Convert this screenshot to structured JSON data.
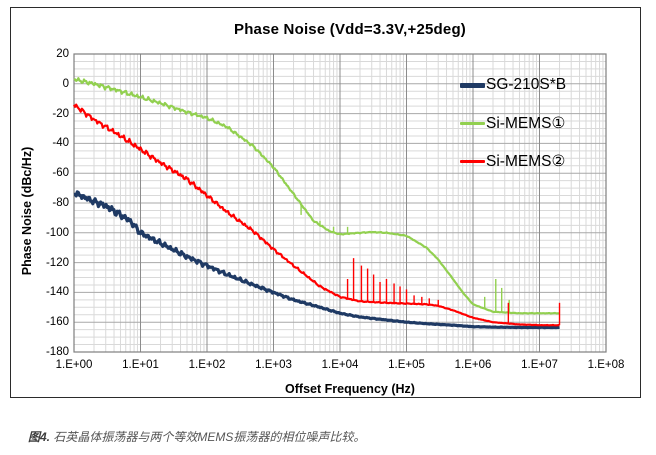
{
  "figure": {
    "title": "Phase Noise (Vdd=3.3V,+25deg)",
    "x_axis": {
      "label": "Offset Frequency (Hz)",
      "tick_labels": [
        "1.E+00",
        "1.E+01",
        "1.E+02",
        "1.E+03",
        "1.E+04",
        "1.E+05",
        "1.E+06",
        "1.E+07",
        "1.E+08"
      ]
    },
    "y_axis": {
      "label": "Phase Noise (dBc/Hz)",
      "tick_labels": [
        "20",
        "0",
        "-20",
        "-40",
        "-60",
        "-80",
        "-100",
        "-120",
        "-140",
        "-160",
        "-180"
      ]
    },
    "legend": [
      {
        "label": "SG-210S*B",
        "color": "#1f3a64",
        "swatch_thickness": 5
      },
      {
        "label": "Si-MEMS①",
        "color": "#92d050",
        "swatch_thickness": 3
      },
      {
        "label": "Si-MEMS②",
        "color": "#ff0000",
        "swatch_thickness": 3
      }
    ],
    "colors": {
      "grid_major": "#a8a8a8",
      "grid_minor": "#d9d9d9",
      "grid_decade": "#8c8c8c",
      "plot_border": "#7f7f7f"
    }
  },
  "caption": {
    "prefix": "图4.",
    "text": " 石英晶体振荡器与两个等效MEMS振荡器的相位噪声比较。"
  },
  "chart_data": {
    "type": "line",
    "title": "Phase Noise (Vdd=3.3V,+25deg)",
    "xlabel": "Offset Frequency (Hz)",
    "ylabel": "Phase Noise (dBc/Hz)",
    "x_scale": "log",
    "xlim": [
      1,
      100000000
    ],
    "ylim": [
      -180,
      20
    ],
    "y_major_step": 20,
    "y_minor_step": 5,
    "grid": true,
    "legend_position": "top-right-inside",
    "series": [
      {
        "name": "SG-210S*B",
        "color": "#1f3a64",
        "line_width": 3.2,
        "seed": 7,
        "x": [
          1,
          2,
          3,
          5,
          7,
          10,
          20,
          50,
          100,
          200,
          500,
          1000,
          2000,
          5000,
          10000,
          20000,
          50000,
          100000,
          200000,
          500000,
          1000000,
          2000000,
          5000000,
          10000000,
          20000000
        ],
        "y": [
          -73,
          -79,
          -82,
          -88,
          -92,
          -100,
          -107,
          -116,
          -122,
          -128,
          -135,
          -140,
          -145,
          -150,
          -154,
          -156.5,
          -158.5,
          -160,
          -161,
          -162,
          -163,
          -163.3,
          -163.5,
          -163.5,
          -163.5
        ],
        "noise_db": [
          2.5,
          2.6,
          3,
          3,
          2.6,
          2.4,
          2.2,
          2,
          1.8,
          1.5,
          1.2,
          1,
          0.8,
          0.6,
          0.5,
          0.4,
          0.3,
          0.25,
          0.2,
          0.2,
          0.15,
          0.15,
          0.15,
          0.15,
          0.15
        ],
        "spurs": []
      },
      {
        "name": "Si-MEMS①",
        "color": "#92d050",
        "line_width": 2.2,
        "seed": 31,
        "x": [
          1,
          2,
          5,
          10,
          20,
          50,
          100,
          200,
          500,
          1000,
          2000,
          4000,
          7000,
          10000,
          20000,
          30000,
          50000,
          100000,
          200000,
          300000,
          500000,
          700000,
          1000000,
          2000000,
          5000000,
          10000000,
          20000000
        ],
        "y": [
          3,
          0,
          -5,
          -9,
          -13,
          -19,
          -23,
          -29,
          -42,
          -56,
          -74,
          -92,
          -99,
          -101,
          -100,
          -99.5,
          -100,
          -102,
          -110,
          -118,
          -131,
          -140,
          -148,
          -153,
          -154,
          -154,
          -154
        ],
        "noise_db": [
          1.8,
          1.8,
          1.8,
          1.8,
          1.6,
          1.5,
          1.4,
          1.3,
          1.2,
          1,
          0.8,
          0.6,
          0.5,
          0.4,
          0.4,
          0.4,
          0.35,
          0.3,
          0.3,
          0.25,
          0.2,
          0.2,
          0.2,
          0.2,
          0.2,
          0.2,
          0.2
        ],
        "spurs": [
          {
            "x": 2600,
            "peak": -88
          },
          {
            "x": 5000,
            "peak": -92
          },
          {
            "x": 8000,
            "peak": -96
          },
          {
            "x": 13000,
            "peak": -96
          },
          {
            "x": 1500000,
            "peak": -143
          },
          {
            "x": 2200000,
            "peak": -131
          },
          {
            "x": 2700000,
            "peak": -137
          },
          {
            "x": 3500000,
            "peak": -145
          }
        ]
      },
      {
        "name": "Si-MEMS②",
        "color": "#ff0000",
        "line_width": 2.2,
        "seed": 59,
        "x": [
          1,
          2,
          5,
          10,
          20,
          50,
          100,
          200,
          500,
          1000,
          2000,
          5000,
          10000,
          20000,
          50000,
          100000,
          200000,
          300000,
          500000,
          1000000,
          2000000,
          5000000,
          10000000,
          20000000
        ],
        "y": [
          -14,
          -24,
          -35,
          -44,
          -53,
          -64,
          -75,
          -86,
          -99,
          -111,
          -122,
          -136,
          -143,
          -146,
          -147,
          -147.5,
          -148,
          -149,
          -152,
          -157,
          -160,
          -161.5,
          -162,
          -162
        ],
        "noise_db": [
          2,
          2,
          2.2,
          2.2,
          2,
          2,
          1.8,
          1.6,
          1.4,
          1.2,
          1,
          0.8,
          0.5,
          0.4,
          0.35,
          0.3,
          0.3,
          0.25,
          0.2,
          0.2,
          0.15,
          0.15,
          0.15,
          0.15
        ],
        "spurs": [
          {
            "x": 13000,
            "peak": -131
          },
          {
            "x": 16000,
            "peak": -117
          },
          {
            "x": 21000,
            "peak": -122
          },
          {
            "x": 26000,
            "peak": -124
          },
          {
            "x": 32000,
            "peak": -128
          },
          {
            "x": 40000,
            "peak": -133
          },
          {
            "x": 50000,
            "peak": -131
          },
          {
            "x": 65000,
            "peak": -134
          },
          {
            "x": 80000,
            "peak": -136
          },
          {
            "x": 100000,
            "peak": -138
          },
          {
            "x": 130000,
            "peak": -142
          },
          {
            "x": 170000,
            "peak": -143
          },
          {
            "x": 220000,
            "peak": -144
          },
          {
            "x": 300000,
            "peak": -145
          },
          {
            "x": 3400000,
            "peak": -147
          },
          {
            "x": 20000000,
            "peak": -147
          }
        ]
      }
    ]
  }
}
